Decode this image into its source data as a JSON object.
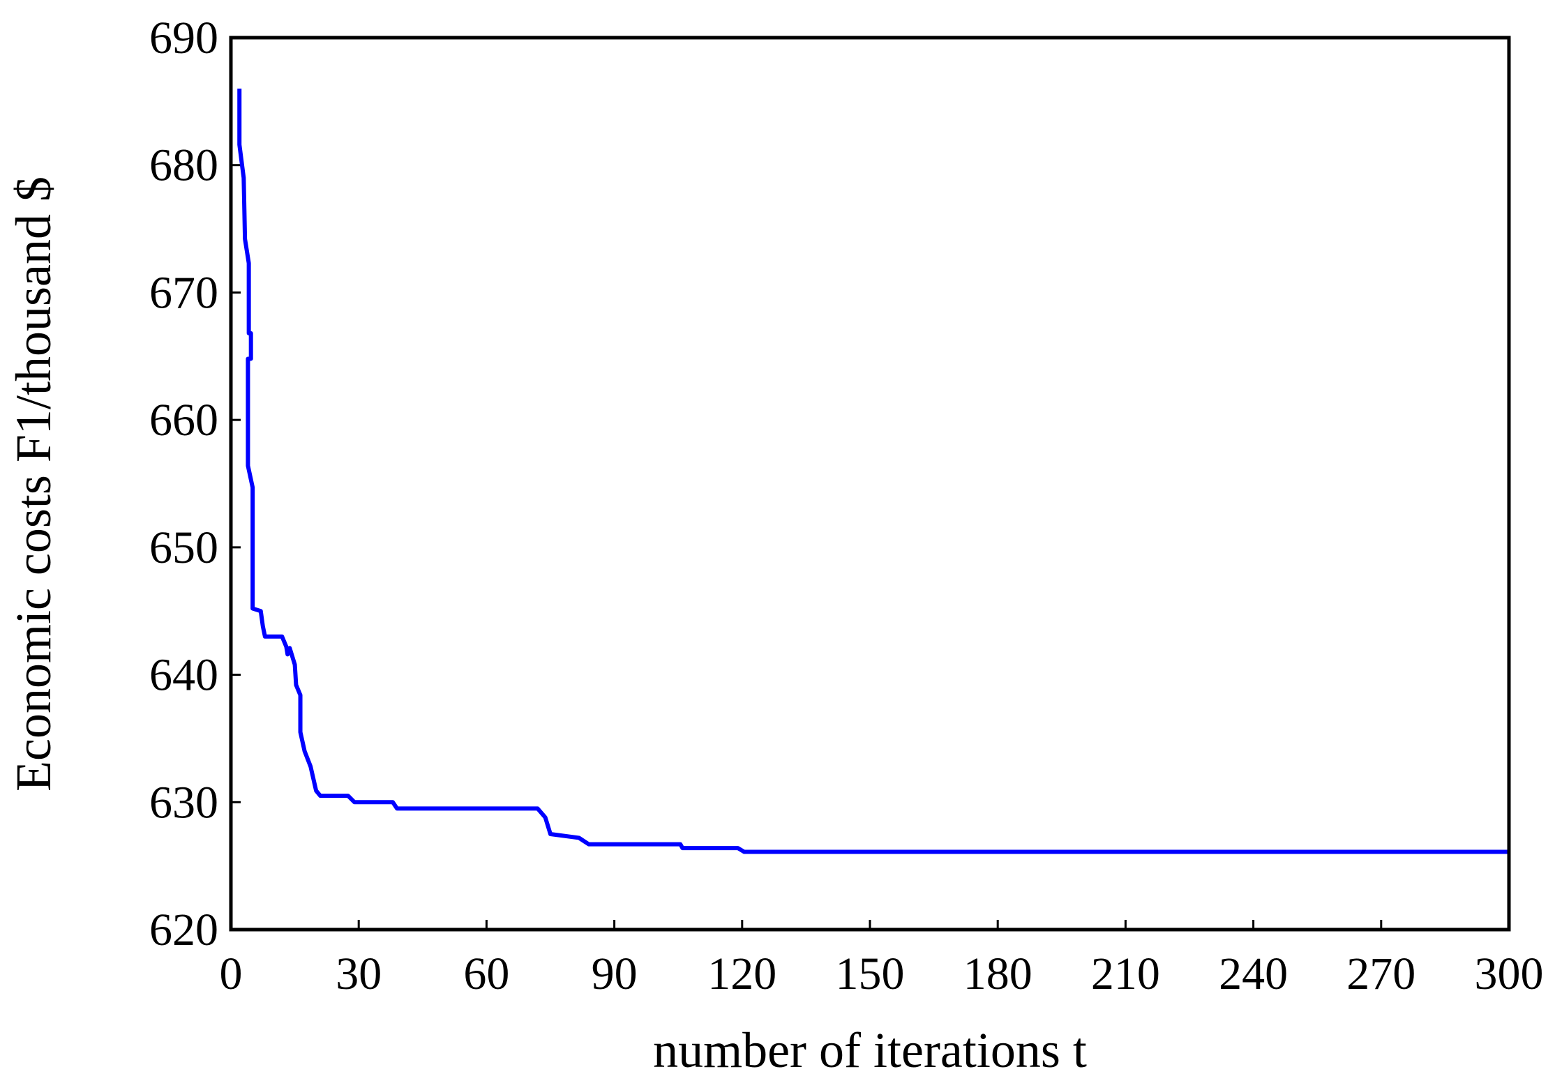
{
  "chart_data": {
    "type": "line",
    "xlabel": "number of iterations t",
    "ylabel": "Economic costs F1/thousand $",
    "xlim": [
      0,
      300
    ],
    "xticks": [
      0,
      30,
      60,
      90,
      120,
      150,
      180,
      210,
      240,
      270,
      300
    ],
    "ylim": [
      620,
      690
    ],
    "yticks": [
      620,
      630,
      640,
      650,
      660,
      670,
      680,
      690
    ],
    "grid": false,
    "x": [
      2,
      2,
      3,
      3.3,
      4.2,
      4.2,
      4.7,
      4.7,
      4,
      4,
      5.1,
      5.1,
      7,
      7.5,
      8,
      12,
      13,
      13.3,
      13.8,
      15,
      15.3,
      16.3,
      16.3,
      17.3,
      18.7,
      20,
      21,
      27.5,
      29,
      38,
      39,
      72,
      73.8,
      75,
      81.7,
      84,
      105.5,
      106,
      119,
      120.5,
      300
    ],
    "series": [
      {
        "name": "F1",
        "color": "#0000ff",
        "values": [
          686,
          681.6,
          679,
          674.2,
          672.3,
          666.8,
          666.8,
          664.8,
          664.8,
          656.4,
          654.7,
          645.2,
          645,
          643.8,
          643,
          643,
          642.2,
          641.6,
          642.1,
          640.8,
          639.2,
          638.4,
          635.5,
          634,
          632.8,
          630.9,
          630.5,
          630.5,
          630,
          630,
          629.5,
          629.5,
          628.8,
          627.5,
          627.2,
          626.7,
          626.7,
          626.4,
          626.4,
          626.1,
          626.1
        ]
      }
    ]
  }
}
